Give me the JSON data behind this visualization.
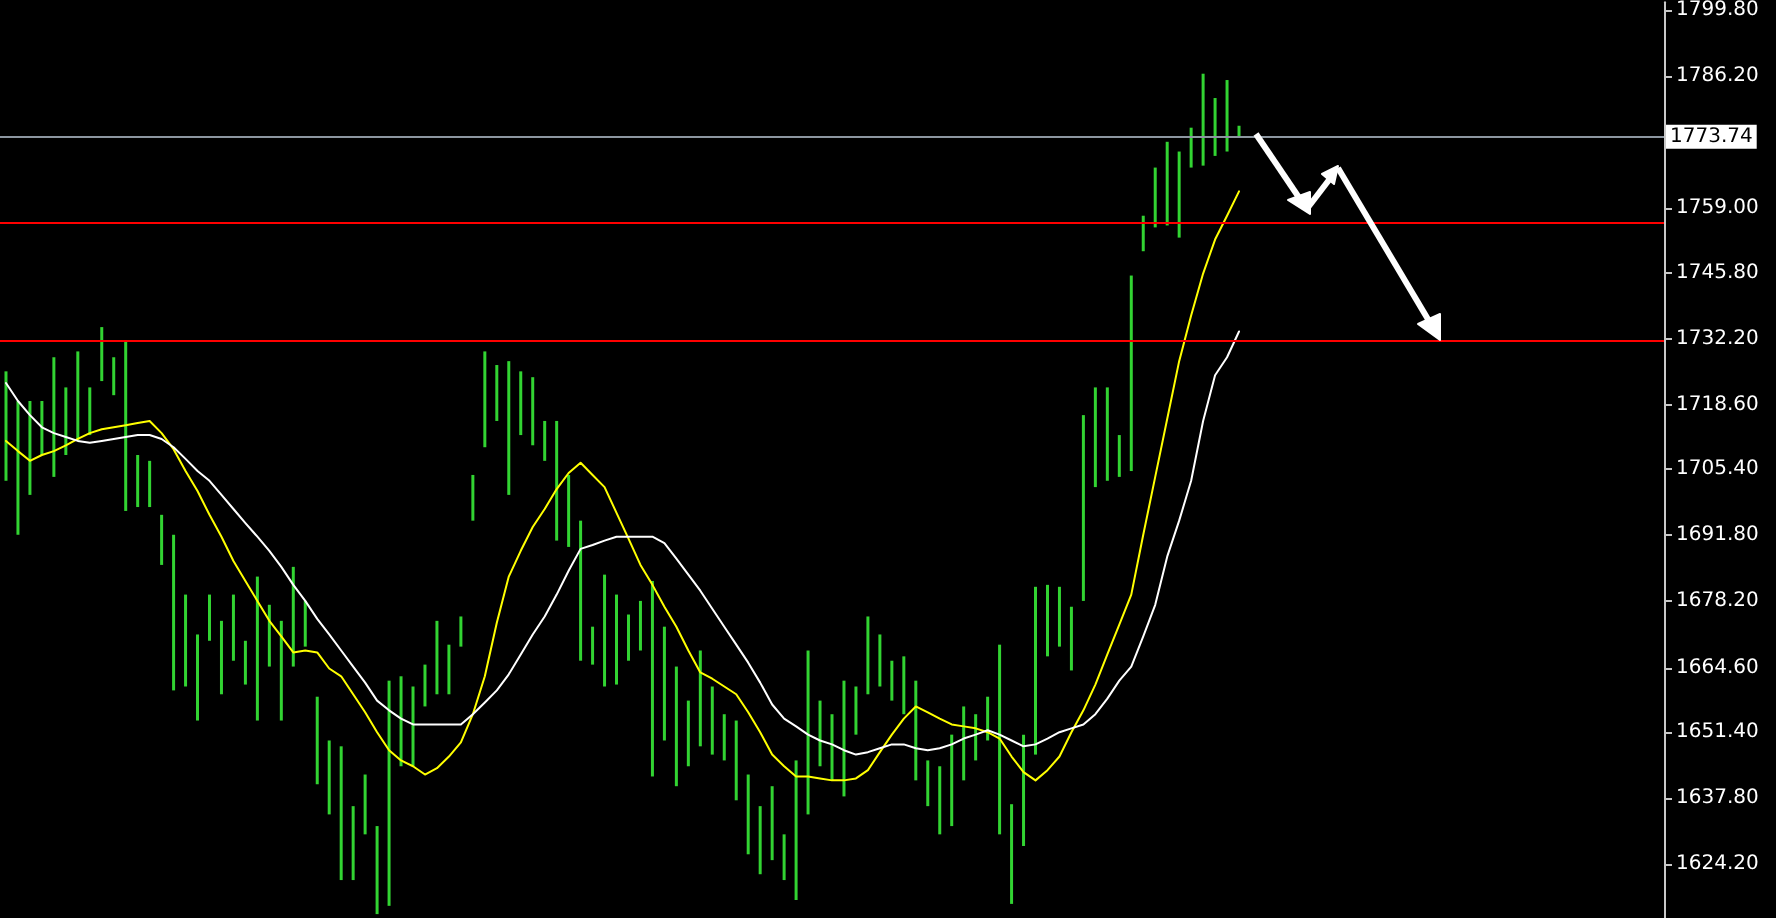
{
  "chart_data": {
    "type": "bar",
    "tick_labels": "y",
    "marker": "none",
    "line_style": "solid",
    "grid": false,
    "categories": [
      null,
      null,
      null,
      null,
      null,
      null,
      null,
      null,
      null,
      null,
      null,
      null,
      null,
      null,
      null,
      null,
      null,
      null,
      null,
      null,
      null,
      null,
      null,
      null,
      null,
      null,
      null,
      null,
      null,
      null,
      null,
      null,
      null,
      null,
      null,
      null,
      null,
      null,
      null,
      null,
      null,
      null,
      null,
      null,
      null,
      null,
      null,
      null,
      null,
      null,
      null,
      null,
      null,
      null,
      null,
      null,
      null,
      null,
      null,
      null,
      null,
      null,
      null,
      null,
      null,
      null,
      null,
      null,
      null,
      null,
      null,
      null,
      null,
      null,
      null,
      null,
      null,
      null,
      null,
      null,
      null,
      null,
      null,
      null,
      null,
      null,
      null,
      null,
      null,
      null,
      null,
      null,
      null,
      null,
      null,
      null,
      null,
      null,
      null,
      null,
      null,
      null,
      null,
      null,
      null,
      null,
      null,
      null,
      null,
      null,
      null,
      null,
      null,
      null,
      null,
      null,
      null,
      null,
      null,
      null,
      null,
      null,
      null,
      null,
      null,
      null,
      null,
      null,
      null,
      null,
      null,
      null,
      null,
      null,
      null,
      null,
      null,
      null,
      null
    ],
    "ylim": [
      1613.1,
      1801.4
    ],
    "yticks": [
      {
        "value": 1624.2,
        "label": "1624.20"
      },
      {
        "value": 1637.8,
        "label": "1637.80"
      },
      {
        "value": 1651.4,
        "label": "1651.40"
      },
      {
        "value": 1664.6,
        "label": "1664.60"
      },
      {
        "value": 1678.2,
        "label": "1678.20"
      },
      {
        "value": 1691.8,
        "label": "1691.80"
      },
      {
        "value": 1705.4,
        "label": "1705.40"
      },
      {
        "value": 1718.6,
        "label": "1718.60"
      },
      {
        "value": 1732.2,
        "label": "1732.20"
      },
      {
        "value": 1745.8,
        "label": "1745.80"
      },
      {
        "value": 1759.0,
        "label": "1759.00"
      },
      {
        "value": 1786.2,
        "label": "1786.20"
      },
      {
        "value": 1799.8,
        "label": "1799.80"
      }
    ],
    "series": [
      {
        "type": "bar",
        "color": "#32d432",
        "base": [
          1703.0,
          1691.9,
          1700.1,
          1708.3,
          1703.8,
          1708.3,
          1711.2,
          1712.4,
          1723.5,
          1720.6,
          1696.8,
          1697.6,
          1697.6,
          1685.7,
          1659.9,
          1660.7,
          1653.7,
          1670.1,
          1659.1,
          1666.0,
          1661.1,
          1653.7,
          1664.8,
          1653.7,
          1664.8,
          1668.9,
          1640.6,
          1634.4,
          1620.9,
          1620.9,
          1630.3,
          1613.9,
          1615.6,
          1644.3,
          1644.3,
          1656.6,
          1659.1,
          1659.1,
          1668.9,
          1694.8,
          1709.9,
          1715.3,
          1700.1,
          1712.4,
          1710.3,
          1707.1,
          1690.7,
          1689.4,
          1666.0,
          1665.2,
          1660.7,
          1661.1,
          1666.0,
          1668.1,
          1642.2,
          1649.6,
          1640.2,
          1644.3,
          1648.4,
          1646.7,
          1645.5,
          1637.3,
          1626.2,
          1622.1,
          1625.0,
          1620.9,
          1616.8,
          1634.4,
          1644.3,
          1641.4,
          1638.1,
          1650.8,
          1659.1,
          1660.7,
          1657.8,
          1655.0,
          1641.4,
          1636.1,
          1630.3,
          1632.0,
          1641.4,
          1645.5,
          1649.6,
          1630.3,
          1616.0,
          1627.9,
          1646.7,
          1666.9,
          1668.9,
          1664.0,
          1678.3,
          1701.7,
          1703.0,
          1703.8,
          1705.0,
          1750.2,
          1755.1,
          1755.5,
          1753.0,
          1767.4,
          1767.8,
          1769.8,
          1770.7,
          1773.5,
          null,
          null,
          null,
          null,
          null,
          null,
          null,
          null,
          null,
          null,
          null,
          null,
          null,
          null,
          null,
          null,
          null,
          null,
          null,
          null,
          null,
          null,
          null,
          null,
          null,
          null,
          null,
          null,
          null,
          null,
          null,
          null,
          null,
          null,
          null
        ],
        "values": [
          22.5,
          27.5,
          19.3,
          11.1,
          24.6,
          13.9,
          18.4,
          9.8,
          11.1,
          7.8,
          34.9,
          10.7,
          9.5,
          10.3,
          32.0,
          18.9,
          17.7,
          9.5,
          15.1,
          13.6,
          9.0,
          29.6,
          12.7,
          20.5,
          20.5,
          9.4,
          18.0,
          15.2,
          27.5,
          15.2,
          12.3,
          18.1,
          46.3,
          18.5,
          16.4,
          8.6,
          15.1,
          10.2,
          6.2,
          9.4,
          19.7,
          11.5,
          27.5,
          13.1,
          14.0,
          8.2,
          24.6,
          14.8,
          28.8,
          7.8,
          23.0,
          18.5,
          9.5,
          10.2,
          40.2,
          23.4,
          24.6,
          13.5,
          19.7,
          14.0,
          9.5,
          16.4,
          16.4,
          14.0,
          15.2,
          9.4,
          28.7,
          33.7,
          13.5,
          13.6,
          23.8,
          9.9,
          16.0,
          10.7,
          8.2,
          11.9,
          20.5,
          9.4,
          14.0,
          18.8,
          15.2,
          9.5,
          9.0,
          39.0,
          20.5,
          22.9,
          34.5,
          14.7,
          12.3,
          13.1,
          38.2,
          20.5,
          19.2,
          8.6,
          40.2,
          7.3,
          12.3,
          17.2,
          17.7,
          8.2,
          18.9,
          11.9,
          14.7,
          2.5,
          null,
          null,
          null,
          null,
          null,
          null,
          null,
          null,
          null,
          null,
          null,
          null,
          null,
          null,
          null,
          null,
          null,
          null,
          null,
          null,
          null,
          null,
          null,
          null,
          null,
          null,
          null,
          null,
          null,
          null,
          null,
          null,
          null,
          null,
          null
        ]
      },
      {
        "type": "line",
        "color": "#ffff00",
        "values": [
          1711.2,
          1709.1,
          1707.1,
          1708.3,
          1709.1,
          1710.3,
          1711.6,
          1712.8,
          1713.6,
          1714.0,
          1714.4,
          1714.9,
          1715.3,
          1712.8,
          1709.5,
          1705.0,
          1700.9,
          1696.0,
          1691.5,
          1686.5,
          1682.4,
          1678.3,
          1674.2,
          1671.0,
          1667.7,
          1668.1,
          1667.7,
          1664.4,
          1662.8,
          1659.1,
          1655.4,
          1651.3,
          1647.6,
          1645.5,
          1644.3,
          1642.6,
          1643.9,
          1646.3,
          1649.2,
          1655.0,
          1662.8,
          1673.8,
          1683.3,
          1688.6,
          1693.5,
          1697.2,
          1701.3,
          1704.6,
          1706.7,
          1704.2,
          1701.7,
          1696.4,
          1691.1,
          1685.7,
          1681.6,
          1677.1,
          1673.0,
          1668.1,
          1663.6,
          1662.3,
          1660.7,
          1659.1,
          1655.4,
          1651.3,
          1646.7,
          1644.3,
          1642.2,
          1642.2,
          1641.8,
          1641.4,
          1641.4,
          1641.8,
          1643.5,
          1647.2,
          1650.8,
          1654.1,
          1656.6,
          1655.4,
          1654.1,
          1652.9,
          1652.5,
          1652.1,
          1651.3,
          1650.0,
          1646.3,
          1643.1,
          1641.4,
          1643.5,
          1646.3,
          1651.3,
          1655.8,
          1661.1,
          1667.3,
          1673.4,
          1679.6,
          1691.9,
          1703.8,
          1715.7,
          1727.6,
          1737.0,
          1745.6,
          1752.6,
          1757.5,
          1762.5,
          null,
          null,
          null,
          null,
          null,
          null,
          null,
          null,
          null,
          null,
          null,
          null,
          null,
          null,
          null,
          null,
          null,
          null,
          null,
          null,
          null,
          null,
          null,
          null,
          null,
          null,
          null,
          null,
          null,
          null,
          null,
          null,
          null,
          null,
          null
        ]
      },
      {
        "type": "line",
        "color": "#ffffff",
        "values": [
          1723.1,
          1719.4,
          1716.5,
          1714.0,
          1712.8,
          1712.0,
          1711.2,
          1710.8,
          1711.2,
          1711.6,
          1712.0,
          1712.4,
          1712.4,
          1711.6,
          1709.9,
          1707.5,
          1705.0,
          1703.0,
          1700.1,
          1697.2,
          1694.3,
          1691.5,
          1688.6,
          1685.3,
          1681.6,
          1678.3,
          1674.6,
          1671.4,
          1668.1,
          1664.8,
          1661.5,
          1657.8,
          1655.8,
          1654.1,
          1652.9,
          1652.9,
          1652.9,
          1652.9,
          1652.9,
          1655.0,
          1657.4,
          1659.9,
          1663.2,
          1667.3,
          1671.4,
          1675.1,
          1679.6,
          1684.5,
          1689.0,
          1689.8,
          1690.7,
          1691.5,
          1691.5,
          1691.5,
          1691.5,
          1690.2,
          1687.0,
          1683.7,
          1680.4,
          1676.7,
          1673.0,
          1669.3,
          1665.6,
          1661.5,
          1657.0,
          1654.1,
          1652.5,
          1650.8,
          1649.6,
          1648.8,
          1647.6,
          1646.7,
          1647.2,
          1648.0,
          1648.8,
          1648.8,
          1648.0,
          1647.6,
          1648.0,
          1648.8,
          1650.0,
          1650.8,
          1651.7,
          1650.8,
          1649.6,
          1648.4,
          1648.8,
          1650.0,
          1651.3,
          1652.1,
          1652.9,
          1655.0,
          1658.2,
          1661.9,
          1664.8,
          1671.0,
          1677.5,
          1687.4,
          1694.8,
          1703.0,
          1715.3,
          1724.7,
          1728.4,
          1733.7,
          null,
          null,
          null,
          null,
          null,
          null,
          null,
          null,
          null,
          null,
          null,
          null,
          null,
          null,
          null,
          null,
          null,
          null,
          null,
          null,
          null,
          null,
          null,
          null,
          null,
          null,
          null,
          null,
          null,
          null,
          null,
          null,
          null,
          null,
          null
        ]
      }
    ],
    "ref_lines": [
      {
        "axis": "y",
        "value": 1773.74,
        "label": "1773.74",
        "color": "#8c96a0"
      },
      {
        "axis": "y",
        "value": 1756.3,
        "color": "#ff0000"
      },
      {
        "axis": "y",
        "value": 1732.0,
        "color": "#ff0000"
      }
    ]
  }
}
